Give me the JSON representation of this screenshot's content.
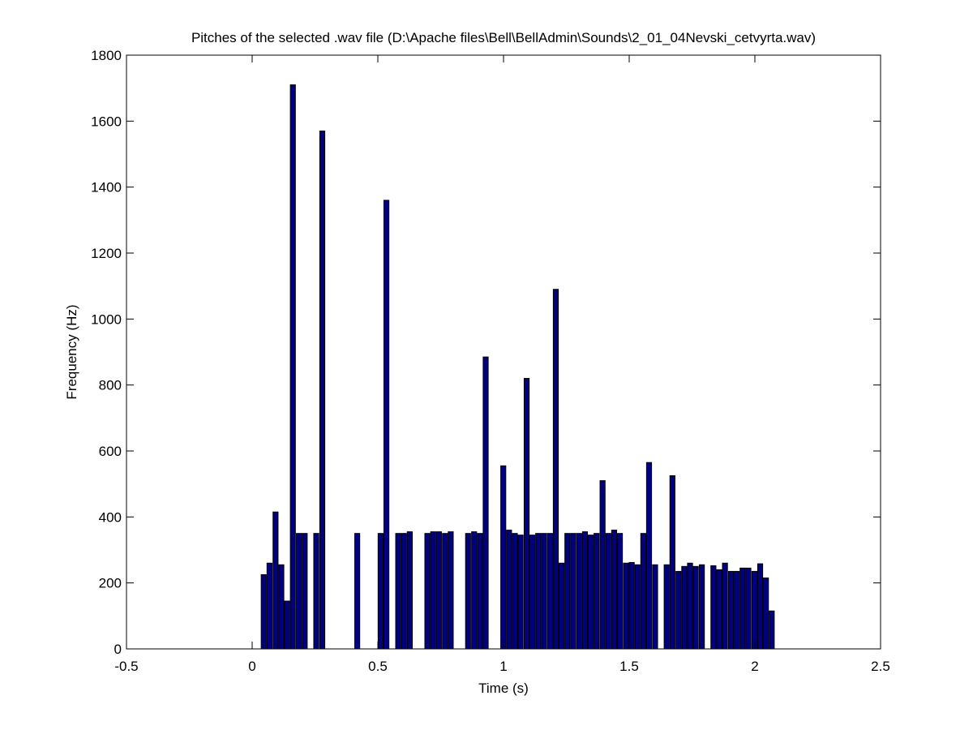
{
  "chart_data": {
    "type": "bar",
    "title": "Pitches of the selected .wav file (D:\\Apache files\\Bell\\BellAdmin\\Sounds\\2_01_04Nevski_cetvyrta.wav)",
    "xlabel": "Time (s)",
    "ylabel": "Frequency (Hz)",
    "xlim": [
      -0.5,
      2.5
    ],
    "ylim": [
      0,
      1800
    ],
    "xticks": [
      -0.5,
      0,
      0.5,
      1,
      1.5,
      2,
      2.5
    ],
    "xtick_labels": [
      "-0.5",
      "0",
      "0.5",
      "1",
      "1.5",
      "2",
      "2.5"
    ],
    "yticks": [
      0,
      200,
      400,
      600,
      800,
      1000,
      1200,
      1400,
      1600,
      1800
    ],
    "ytick_labels": [
      "0",
      "200",
      "400",
      "600",
      "800",
      "1000",
      "1200",
      "1400",
      "1600",
      "1800"
    ],
    "grid": false,
    "bar_width": 0.02,
    "bar_color": "#000080",
    "points": [
      {
        "x": 0.046,
        "y": 225
      },
      {
        "x": 0.069,
        "y": 260
      },
      {
        "x": 0.093,
        "y": 415
      },
      {
        "x": 0.116,
        "y": 255
      },
      {
        "x": 0.139,
        "y": 145
      },
      {
        "x": 0.162,
        "y": 1710
      },
      {
        "x": 0.186,
        "y": 350
      },
      {
        "x": 0.209,
        "y": 350
      },
      {
        "x": 0.255,
        "y": 350
      },
      {
        "x": 0.279,
        "y": 1570
      },
      {
        "x": 0.418,
        "y": 350
      },
      {
        "x": 0.511,
        "y": 350
      },
      {
        "x": 0.534,
        "y": 1360
      },
      {
        "x": 0.581,
        "y": 350
      },
      {
        "x": 0.604,
        "y": 350
      },
      {
        "x": 0.627,
        "y": 355
      },
      {
        "x": 0.697,
        "y": 350
      },
      {
        "x": 0.72,
        "y": 355
      },
      {
        "x": 0.743,
        "y": 355
      },
      {
        "x": 0.767,
        "y": 350
      },
      {
        "x": 0.79,
        "y": 355
      },
      {
        "x": 0.859,
        "y": 350
      },
      {
        "x": 0.883,
        "y": 355
      },
      {
        "x": 0.906,
        "y": 350
      },
      {
        "x": 0.929,
        "y": 885
      },
      {
        "x": 0.999,
        "y": 555
      },
      {
        "x": 1.022,
        "y": 360
      },
      {
        "x": 1.045,
        "y": 350
      },
      {
        "x": 1.068,
        "y": 345
      },
      {
        "x": 1.092,
        "y": 820
      },
      {
        "x": 1.115,
        "y": 345
      },
      {
        "x": 1.138,
        "y": 350
      },
      {
        "x": 1.161,
        "y": 350
      },
      {
        "x": 1.185,
        "y": 350
      },
      {
        "x": 1.208,
        "y": 1090
      },
      {
        "x": 1.231,
        "y": 260
      },
      {
        "x": 1.254,
        "y": 350
      },
      {
        "x": 1.277,
        "y": 350
      },
      {
        "x": 1.301,
        "y": 350
      },
      {
        "x": 1.324,
        "y": 355
      },
      {
        "x": 1.347,
        "y": 345
      },
      {
        "x": 1.37,
        "y": 350
      },
      {
        "x": 1.394,
        "y": 510
      },
      {
        "x": 1.417,
        "y": 350
      },
      {
        "x": 1.44,
        "y": 360
      },
      {
        "x": 1.463,
        "y": 350
      },
      {
        "x": 1.487,
        "y": 260
      },
      {
        "x": 1.51,
        "y": 262
      },
      {
        "x": 1.533,
        "y": 255
      },
      {
        "x": 1.556,
        "y": 350
      },
      {
        "x": 1.579,
        "y": 565
      },
      {
        "x": 1.603,
        "y": 255
      },
      {
        "x": 1.649,
        "y": 255
      },
      {
        "x": 1.672,
        "y": 525
      },
      {
        "x": 1.696,
        "y": 235
      },
      {
        "x": 1.719,
        "y": 250
      },
      {
        "x": 1.742,
        "y": 260
      },
      {
        "x": 1.765,
        "y": 250
      },
      {
        "x": 1.789,
        "y": 255
      },
      {
        "x": 1.835,
        "y": 252
      },
      {
        "x": 1.858,
        "y": 240
      },
      {
        "x": 1.881,
        "y": 260
      },
      {
        "x": 1.905,
        "y": 235
      },
      {
        "x": 1.928,
        "y": 235
      },
      {
        "x": 1.951,
        "y": 245
      },
      {
        "x": 1.974,
        "y": 245
      },
      {
        "x": 1.998,
        "y": 235
      },
      {
        "x": 2.021,
        "y": 258
      },
      {
        "x": 2.044,
        "y": 215
      },
      {
        "x": 2.067,
        "y": 115
      }
    ]
  }
}
